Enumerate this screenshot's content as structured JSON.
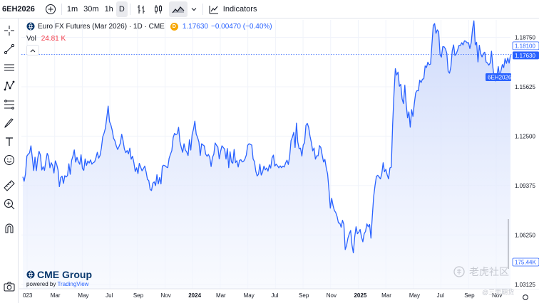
{
  "toolbar": {
    "symbol": "6EH2026",
    "intervals": [
      "1m",
      "30m",
      "1h",
      "D"
    ],
    "active_interval": "D",
    "indicators_label": "Indicators",
    "icons": [
      "plus-circle-icon",
      "bar-style-icon",
      "candle-style-icon",
      "area-style-icon",
      "chevron-down-icon",
      "indicators-icon"
    ]
  },
  "sidebar": {
    "tools": [
      "crosshair-icon",
      "trendline-icon",
      "horizontal-lines-icon",
      "node-pattern-icon",
      "fib-lines-icon",
      "brush-icon",
      "text-icon",
      "emoji-icon",
      "ruler-icon",
      "zoom-in-icon",
      "magnet-icon",
      "camera-icon"
    ]
  },
  "legend": {
    "title": "Euro FX Futures (Mar 2026) · 1D · CME",
    "badge": "D",
    "price": "1.17630",
    "change": "−0.00470 (−0.40%)",
    "vol_label": "Vol",
    "vol_value": "24.81 K"
  },
  "logo": {
    "brand": "CME Group",
    "powered_by": "powered by",
    "powered_name": "TradingView"
  },
  "watermark": {
    "text": "老虎社区",
    "subtext": "@三思期货"
  },
  "colors": {
    "line": "#2962ff",
    "fill_top": "#c9d6fb",
    "fill_bottom": "#f4f7fe",
    "price_label_bg": "#2962ff",
    "grid": "#f0f3fa"
  },
  "chart_data": {
    "type": "area",
    "x_ticks": [
      "023",
      "Mar",
      "May",
      "Jul",
      "Sep",
      "Nov",
      "2024",
      "Mar",
      "May",
      "Jul",
      "Sep",
      "Nov",
      "2025",
      "Mar",
      "May",
      "Jul",
      "Sep",
      "Nov"
    ],
    "bold_ticks": [
      "2024",
      "2025"
    ],
    "y_ticks": [
      "1.18750",
      "1.15625",
      "1.12500",
      "1.09375",
      "1.06250",
      "1.03125"
    ],
    "ylim": [
      1.0285,
      1.1985
    ],
    "price_labels": {
      "last_high": "1.18100",
      "symbol_tag": "6EH2026",
      "last_price": "1.17630",
      "volume_tag": "175.44K"
    },
    "series": [
      {
        "values": [
          1.0993,
          1.0965,
          1.1013,
          1.1124,
          1.1136,
          1.1145,
          1.1189,
          1.1115,
          1.1033,
          1.1117,
          1.1032,
          1.1109,
          1.1154,
          1.113,
          1.1036,
          1.1057,
          1.1034,
          1.1092,
          1.1141,
          1.1122,
          1.105,
          1.1082,
          1.1064,
          1.1017,
          1.1094,
          1.1071,
          1.1036,
          1.0931,
          1.0989,
          1.0997,
          1.0951,
          1.1,
          1.0992,
          1.1001,
          1.1075,
          1.1009,
          1.1096,
          1.1124,
          1.1163,
          1.1086,
          1.1116,
          1.1089,
          1.1072,
          1.1132,
          1.1045,
          1.1034,
          1.1106,
          1.1065,
          1.1093,
          1.108,
          1.11,
          1.1073,
          1.1083,
          1.1087,
          1.1114,
          1.1148,
          1.1111,
          1.1128,
          1.1175,
          1.1246,
          1.1269,
          1.1301,
          1.1369,
          1.144,
          1.1342,
          1.1321,
          1.1287,
          1.1237,
          1.122,
          1.1188,
          1.1166,
          1.1184,
          1.1206,
          1.1262,
          1.1222,
          1.1168,
          1.1146,
          1.1159,
          1.1138,
          1.1174,
          1.1104,
          1.1123,
          1.1082,
          1.1026,
          1.105,
          1.1013,
          1.1078,
          1.1054,
          1.1031,
          1.1044,
          1.1061,
          1.1025,
          1.0977,
          1.0969,
          1.0913,
          1.0906,
          1.0953,
          1.0961,
          1.0937,
          1.1006,
          1.0948,
          1.0989,
          1.0948,
          1.106,
          1.1066,
          1.1063,
          1.1055,
          1.1051,
          1.111,
          1.1136,
          1.1159,
          1.1241,
          1.1267,
          1.1259,
          1.1265,
          1.1306,
          1.1214,
          1.1178,
          1.1148,
          1.1202,
          1.1163,
          1.115,
          1.1128,
          1.1227,
          1.1162,
          1.1262,
          1.1294,
          1.1345,
          1.1263,
          1.1242,
          1.1213,
          1.1128,
          1.1202,
          1.1195,
          1.1188,
          1.1136,
          1.1123,
          1.1135,
          1.1116,
          1.1058,
          1.1115,
          1.1136,
          1.1207,
          1.1192,
          1.1181,
          1.1106,
          1.1154,
          1.1189,
          1.1178,
          1.1168,
          1.1105,
          1.1172,
          1.1051,
          1.1151,
          1.1087,
          1.1079,
          1.1166,
          1.1083,
          1.1095,
          1.1055,
          1.1097,
          1.1101,
          1.1087,
          1.1091,
          1.1106,
          1.1131,
          1.1192,
          1.1202,
          1.1198,
          1.1194,
          1.1106,
          1.1089,
          1.1028,
          1.0998,
          1.101,
          1.1073,
          1.1004,
          1.1023,
          1.1061,
          1.1037,
          1.1049,
          1.1029,
          1.1069,
          1.1048,
          1.1113,
          1.113,
          1.1061,
          1.1073,
          1.1063,
          1.105,
          1.1062,
          1.1051,
          1.1061,
          1.1055,
          1.1081,
          1.1098,
          1.1071,
          1.1123,
          1.1222,
          1.1244,
          1.1274,
          1.1178,
          1.1332,
          1.1213,
          1.117,
          1.1174,
          1.1124,
          1.1194,
          1.1209,
          1.1318,
          1.1331,
          1.1306,
          1.125,
          1.121,
          1.1157,
          1.1175,
          1.1105,
          1.1126,
          1.1126,
          1.119,
          1.1178,
          1.113,
          1.1087,
          1.1103,
          1.1049,
          1.1011,
          1.0911,
          1.0795,
          1.0857,
          1.0812,
          1.078,
          1.0767,
          1.0742,
          1.0701,
          1.07,
          1.0674,
          1.0718,
          1.0692,
          1.0533,
          1.0559,
          1.0605,
          1.0632,
          1.0654,
          1.0561,
          1.0512,
          1.0612,
          1.0677,
          1.0633,
          1.0642,
          1.066,
          1.0613,
          1.0582,
          1.0633,
          1.0648,
          1.0695,
          1.0677,
          1.0692,
          1.0605,
          1.0744,
          1.0868,
          1.0937,
          1.0995,
          1.1003,
          1.0992,
          1.098,
          1.1012,
          1.1082,
          1.1025,
          1.104,
          1.1005,
          1.098,
          1.1049,
          1.1054,
          1.1322,
          1.1518,
          1.1677,
          1.1636,
          1.1655,
          1.1566,
          1.1578,
          1.1485,
          1.1456,
          1.1572,
          1.1453,
          1.1366,
          1.1404,
          1.1307,
          1.1418,
          1.1375,
          1.1455,
          1.1523,
          1.1538,
          1.1537,
          1.1604,
          1.1589,
          1.161,
          1.1613,
          1.1694,
          1.1684,
          1.1718,
          1.1702,
          1.1706,
          1.1829,
          1.195,
          1.1962,
          1.19,
          1.1922,
          1.1909,
          1.1765,
          1.175,
          1.1816,
          1.1815,
          1.1802,
          1.1774,
          1.166,
          1.1648,
          1.1688,
          1.179,
          1.1827,
          1.176,
          1.1771,
          1.1795,
          1.1824,
          1.1823,
          1.1841,
          1.1827,
          1.1853,
          1.185,
          1.184,
          1.1841,
          1.1804,
          1.1841,
          1.1929,
          1.1979,
          1.1827,
          1.1844,
          1.1719,
          1.1825,
          1.1771,
          1.1751,
          1.1773,
          1.1781,
          1.1719,
          1.1713,
          1.1699,
          1.1713,
          1.1787,
          1.1686,
          1.1614,
          1.1599,
          1.1633,
          1.169,
          1.1624,
          1.1664,
          1.1703,
          1.1683,
          1.174,
          1.171,
          1.1745,
          1.1712,
          1.1763
        ]
      }
    ]
  }
}
